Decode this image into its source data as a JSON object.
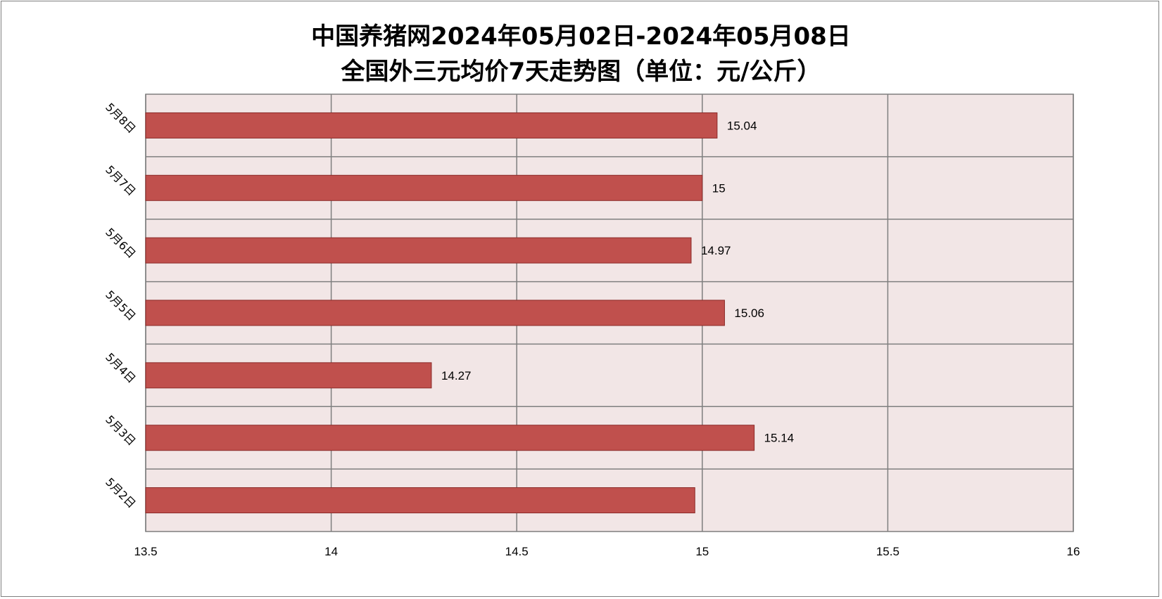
{
  "chart_data": {
    "type": "bar",
    "orientation": "horizontal",
    "title_line1": "中国养猪网2024年05月02日-2024年05月08日",
    "title_line2": "全国外三元均价7天走势图（单位：元/公斤）",
    "categories": [
      "5月2日",
      "5月3日",
      "5月4日",
      "5月5日",
      "5月6日",
      "5月7日",
      "5月8日"
    ],
    "values": [
      14.98,
      15.14,
      14.27,
      15.06,
      14.97,
      15,
      15.04
    ],
    "data_labels": [
      "",
      "15.14",
      "14.27",
      "15.06",
      "14.97",
      "15",
      "15.04"
    ],
    "xlim": [
      13.5,
      16
    ],
    "xticks": [
      13.5,
      14,
      14.5,
      15,
      15.5,
      16
    ],
    "xtick_labels": [
      "13.5",
      "14",
      "14.5",
      "15",
      "15.5",
      "16"
    ],
    "grid": true,
    "colors": {
      "bar": "#c0504d",
      "bar_border": "#8b2a28",
      "plot_background": "#f2e6e6",
      "grid": "#7f7f7f"
    }
  }
}
